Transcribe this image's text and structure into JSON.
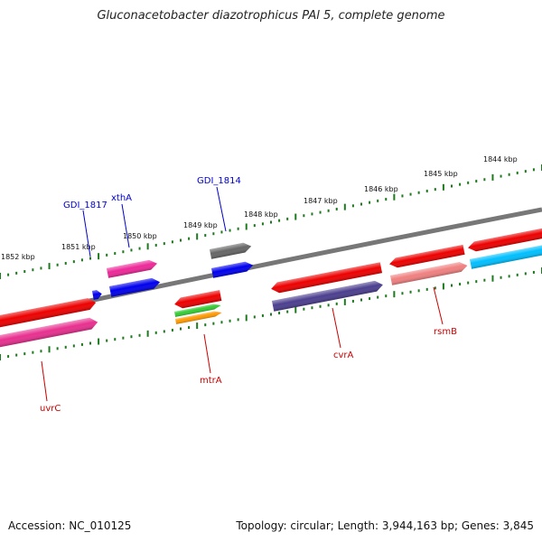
{
  "title": "Gluconacetobacter diazotrophicus PAl 5, complete genome",
  "footer": {
    "accession": "Accession: NC_010125",
    "summary": "Topology: circular; Length: 3,944,163 bp; Genes: 3,845"
  },
  "ticks": [
    {
      "label": "1852 kbp"
    },
    {
      "label": "1851 kbp"
    },
    {
      "label": "1850 kbp"
    },
    {
      "label": "1849 kbp"
    },
    {
      "label": "1848 kbp"
    },
    {
      "label": "1847 kbp"
    },
    {
      "label": "1846 kbp"
    },
    {
      "label": "1845 kbp"
    },
    {
      "label": "1844 kbp"
    }
  ],
  "colors": {
    "backbone": "#777777",
    "ruler": "#1e7a1e",
    "label_forward": "#0000cc",
    "label_reverse": "#cc0000"
  },
  "genes": [
    {
      "id": "uvrC_red",
      "color": "#ee0000"
    },
    {
      "id": "uvrC_pink",
      "color": "#e8308f"
    },
    {
      "id": "xthA_magenta",
      "color": "#ee2899"
    },
    {
      "id": "xthA_blue",
      "color": "#0000ee"
    },
    {
      "id": "gdi1817_blue",
      "color": "#0000ee"
    },
    {
      "id": "mtrA_red",
      "color": "#ee0000"
    },
    {
      "id": "mtrA_green",
      "color": "#33cc33"
    },
    {
      "id": "mtrA_orange",
      "color": "#ff9900"
    },
    {
      "id": "gdi1814_grey",
      "color": "#666666"
    },
    {
      "id": "gdi1814_blue",
      "color": "#0000ee"
    },
    {
      "id": "cvrA_red",
      "color": "#ee0000"
    },
    {
      "id": "cvrA_purple",
      "color": "#4b3f8f"
    },
    {
      "id": "rsmB_red",
      "color": "#ee0000"
    },
    {
      "id": "rsmB_salmon",
      "color": "#f08080"
    },
    {
      "id": "right_red",
      "color": "#ee0000"
    },
    {
      "id": "right_cyan",
      "color": "#00bfff"
    }
  ],
  "gene_labels": [
    {
      "text": "GDI_1817",
      "strand": "forward"
    },
    {
      "text": "xthA",
      "strand": "forward"
    },
    {
      "text": "GDI_1814",
      "strand": "forward"
    },
    {
      "text": "uvrC",
      "strand": "reverse"
    },
    {
      "text": "mtrA",
      "strand": "reverse"
    },
    {
      "text": "cvrA",
      "strand": "reverse"
    },
    {
      "text": "rsmB",
      "strand": "reverse"
    }
  ]
}
